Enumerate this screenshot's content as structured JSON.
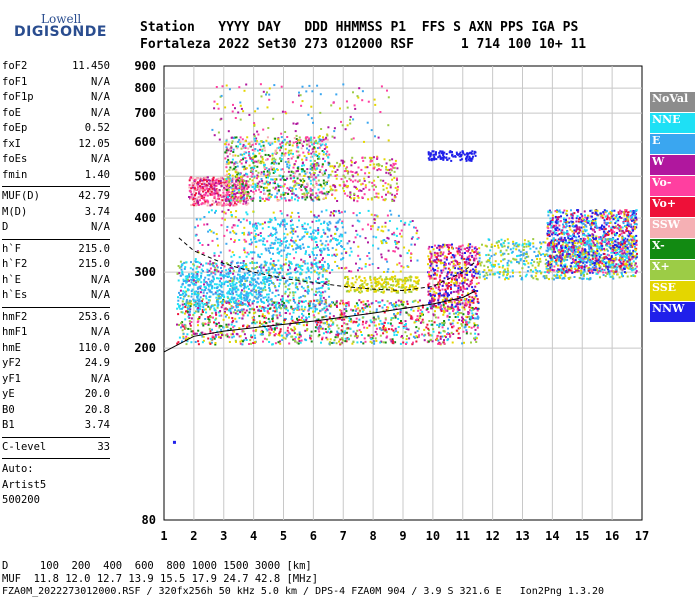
{
  "logo": {
    "top": "Lowell",
    "main": "DIGISONDE"
  },
  "header": {
    "line1": "Station   YYYY DAY   DDD HHMMSS P1  FFS S AXN PPS IGA PS",
    "line2": "Fortaleza 2022 Set30 273 012000 RSF      1 714 100 10+ 11"
  },
  "params": {
    "group1": [
      [
        "foF2",
        "11.450"
      ],
      [
        "foF1",
        "N/A"
      ],
      [
        "foF1p",
        "N/A"
      ],
      [
        "foE",
        "N/A"
      ],
      [
        "foEp",
        "0.52"
      ],
      [
        "fxI",
        "12.05"
      ],
      [
        "foEs",
        "N/A"
      ],
      [
        "fmin",
        "1.40"
      ]
    ],
    "group2": [
      [
        "MUF(D)",
        "42.79"
      ],
      [
        "M(D)",
        "3.74"
      ],
      [
        "D",
        "N/A"
      ]
    ],
    "group3": [
      [
        "h`F",
        "215.0"
      ],
      [
        "h`F2",
        "215.0"
      ],
      [
        "h`E",
        "N/A"
      ],
      [
        "h`Es",
        "N/A"
      ]
    ],
    "group4": [
      [
        "hmF2",
        "253.6"
      ],
      [
        "hmF1",
        "N/A"
      ],
      [
        "hmE",
        "110.0"
      ],
      [
        "yF2",
        "24.9"
      ],
      [
        "yF1",
        "N/A"
      ],
      [
        "yE",
        "20.0"
      ],
      [
        "B0",
        "20.8"
      ],
      [
        "B1",
        "3.74"
      ]
    ],
    "clevel": [
      "C-level",
      "33"
    ],
    "auto": [
      "Auto:",
      "Artist5",
      "500200"
    ]
  },
  "legend": [
    {
      "label": "NoVal",
      "color": "#8c8c8c"
    },
    {
      "label": "NNE",
      "color": "#1ee0f5"
    },
    {
      "label": "E",
      "color": "#3aa6f0"
    },
    {
      "label": "W",
      "color": "#b0179e"
    },
    {
      "label": "Vo-",
      "color": "#ff3fa0"
    },
    {
      "label": "Vo+",
      "color": "#ee1038"
    },
    {
      "label": "SSW",
      "color": "#f5b0b4"
    },
    {
      "label": "X-",
      "color": "#128a12"
    },
    {
      "label": "X+",
      "color": "#9ccc46"
    },
    {
      "label": "SSE",
      "color": "#e4d600"
    },
    {
      "label": "NNW",
      "color": "#2020ea"
    }
  ],
  "chart_data": {
    "type": "scatter",
    "xlim": [
      1,
      17
    ],
    "ylim": [
      80,
      900
    ],
    "y_scale": "log",
    "x_ticks": [
      "1",
      "2",
      "3",
      "4",
      "5",
      "6",
      "7",
      "8",
      "9",
      "10",
      "11",
      "12",
      "13",
      "14",
      "15",
      "16",
      "17"
    ],
    "y_ticks": [
      80,
      200,
      300,
      400,
      500,
      600,
      700,
      800,
      900
    ],
    "grid": true,
    "legend_position": "right",
    "profile_curve": [
      [
        1.0,
        196
      ],
      [
        2.0,
        213
      ],
      [
        3.0,
        219
      ],
      [
        4.0,
        223
      ],
      [
        5.0,
        227
      ],
      [
        6.0,
        231
      ],
      [
        7.0,
        236
      ],
      [
        8.0,
        241
      ],
      [
        9.0,
        247
      ],
      [
        10.0,
        253
      ],
      [
        11.0,
        262
      ],
      [
        11.45,
        272
      ]
    ],
    "muf_curve": [
      [
        1.5,
        360
      ],
      [
        2.0,
        336
      ],
      [
        3.0,
        314
      ],
      [
        4.0,
        300
      ],
      [
        5.0,
        290
      ],
      [
        6.0,
        284
      ],
      [
        7.0,
        278
      ],
      [
        8.0,
        274
      ],
      [
        9.0,
        272
      ],
      [
        10.0,
        278
      ],
      [
        11.0,
        300
      ],
      [
        11.45,
        318
      ]
    ],
    "isolated_point": [
      1.3,
      122
    ]
  },
  "bottom": {
    "d_row": "D     100  200  400  600  800 1000 1500 3000 [km]",
    "muf_row": "MUF  11.8 12.0 12.7 13.9 15.5 17.9 24.7 42.8 [MHz]",
    "file_row": "FZA0M_2022273012000.RSF / 320fx256h 50 kHz 5.0 km / DPS-4 FZA0M 904 / 3.9 S 321.6 E   Ion2Png 1.3.20"
  }
}
